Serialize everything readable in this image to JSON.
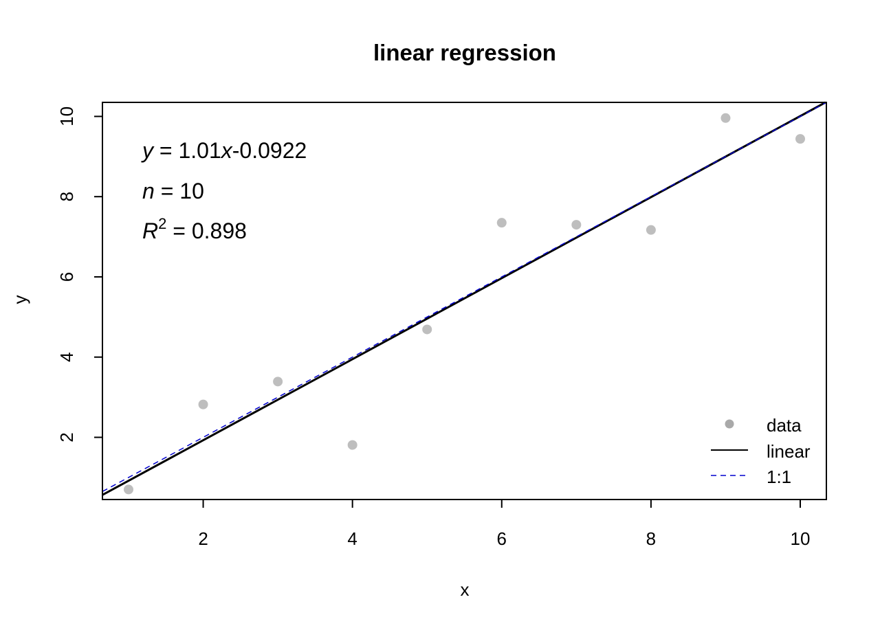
{
  "chart_data": {
    "type": "scatter",
    "title": "linear regression",
    "xlabel": "x",
    "ylabel": "y",
    "xlim": [
      0.65,
      10.35
    ],
    "ylim": [
      0.45,
      10.35
    ],
    "xticks": [
      2,
      4,
      6,
      8,
      10
    ],
    "yticks": [
      2,
      4,
      6,
      8,
      10
    ],
    "grid": false,
    "legend_position": "bottom-right",
    "series": [
      {
        "name": "data",
        "kind": "points",
        "color": "#bebebe",
        "x": [
          1,
          2,
          3,
          4,
          5,
          6,
          7,
          8,
          9,
          10
        ],
        "y": [
          0.7,
          2.82,
          3.39,
          1.81,
          4.69,
          7.35,
          7.3,
          7.17,
          9.96,
          9.44
        ]
      },
      {
        "name": "linear",
        "kind": "line",
        "color": "#000000",
        "slope": 1.01,
        "intercept": -0.0922
      },
      {
        "name": "1:1",
        "kind": "dashed-line",
        "color": "#0000cd"
      }
    ],
    "annotations": {
      "equation": {
        "y_var": "y",
        "eq": " = 1.01",
        "x_var": "x",
        "rest": "-0.0922"
      },
      "n": {
        "var": "n",
        "rest": " = 10"
      },
      "r2": {
        "var": "R",
        "sup": "2",
        "rest": " = 0.898"
      }
    }
  }
}
